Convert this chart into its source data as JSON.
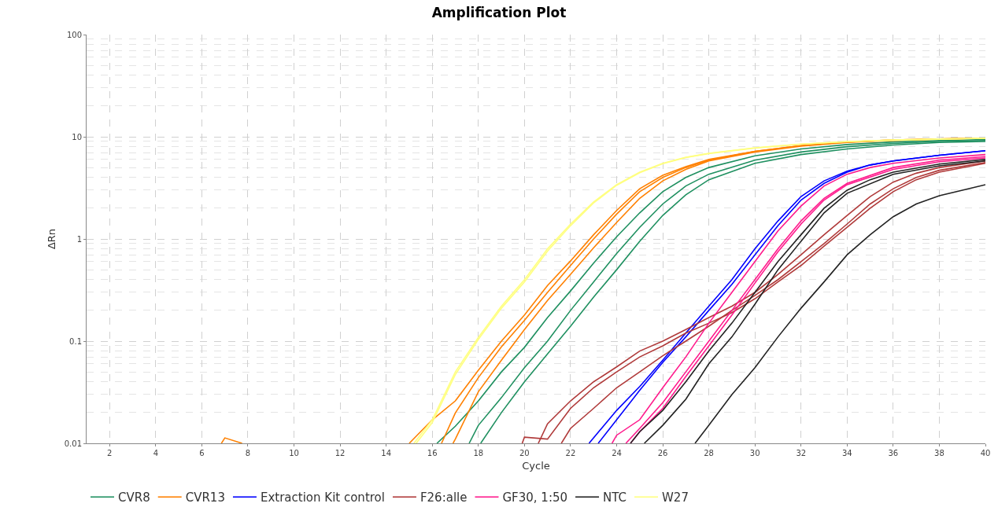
{
  "chart_data": {
    "type": "line",
    "title": "Amplification Plot",
    "xlabel": "Cycle",
    "ylabel": "ΔRn",
    "log": "y",
    "grid": true,
    "legend": "bottom",
    "marker": "none",
    "line_style": "solid",
    "xlim": [
      1,
      40
    ],
    "xticks": [
      2,
      4,
      6,
      8,
      10,
      12,
      14,
      16,
      18,
      20,
      22,
      24,
      26,
      28,
      30,
      32,
      34,
      36,
      38,
      40
    ],
    "ylim": [
      0.01,
      100
    ],
    "yticks": [
      0.01,
      0.1,
      1,
      10,
      100
    ],
    "series": [
      {
        "name": "CVR8",
        "color": "#1f9060",
        "x": [
          16.2,
          17,
          18,
          19,
          20,
          21,
          22,
          23,
          24,
          25,
          26,
          27,
          28,
          30,
          32,
          34,
          36,
          38,
          40,
          null,
          17.6,
          18,
          19,
          20,
          21,
          22,
          23,
          24,
          25,
          26,
          27,
          28,
          30,
          32,
          34,
          36,
          38,
          40,
          null,
          18.1,
          19,
          20,
          21,
          22,
          23,
          24,
          25,
          26,
          27,
          28,
          30,
          32,
          34,
          36,
          38,
          40
        ],
        "values": [
          0.01,
          0.0147,
          0.026,
          0.05,
          0.087,
          0.17,
          0.31,
          0.58,
          1.05,
          1.8,
          2.9,
          4.0,
          5.0,
          6.5,
          7.6,
          8.4,
          8.9,
          9.2,
          9.4,
          null,
          0.01,
          0.015,
          0.028,
          0.055,
          0.1,
          0.2,
          0.38,
          0.72,
          1.3,
          2.2,
          3.3,
          4.3,
          5.9,
          7.1,
          8.0,
          8.6,
          9.0,
          9.2,
          null,
          0.01,
          0.02,
          0.04,
          0.075,
          0.14,
          0.27,
          0.5,
          0.95,
          1.7,
          2.7,
          3.8,
          5.5,
          6.7,
          7.6,
          8.3,
          8.8,
          9.0
        ]
      },
      {
        "name": "CVR13",
        "color": "#ff8000",
        "x": [
          6.85,
          7,
          7.75,
          null,
          15,
          16,
          17,
          18,
          19,
          20,
          21,
          22,
          23,
          24,
          25,
          26,
          27,
          28,
          30,
          32,
          34,
          36,
          38,
          40,
          null,
          16.4,
          17,
          18,
          19,
          20,
          21,
          22,
          23,
          24,
          25,
          26,
          27,
          28,
          30,
          32,
          34,
          36,
          38,
          40,
          null,
          16.9,
          17,
          18,
          19,
          20,
          21,
          22,
          23,
          24,
          25,
          26,
          27,
          28,
          30,
          32,
          34,
          36,
          38,
          40
        ],
        "values": [
          0.01,
          0.0113,
          0.01,
          null,
          0.01,
          0.017,
          0.026,
          0.052,
          0.1,
          0.18,
          0.35,
          0.61,
          1.1,
          1.9,
          3.1,
          4.2,
          5.1,
          6.0,
          7.2,
          8.2,
          8.9,
          9.3,
          9.5,
          9.7,
          null,
          0.01,
          0.0198,
          0.044,
          0.088,
          0.16,
          0.3,
          0.55,
          1.0,
          1.75,
          2.9,
          4.0,
          5.0,
          5.9,
          7.2,
          8.2,
          8.9,
          9.3,
          9.5,
          9.7,
          null,
          0.01,
          0.011,
          0.032,
          0.065,
          0.13,
          0.25,
          0.45,
          0.82,
          1.45,
          2.5,
          3.7,
          4.8,
          5.8,
          7.1,
          8.1,
          8.8,
          9.2,
          9.5,
          9.7
        ]
      },
      {
        "name": "Extraction Kit control",
        "color": "#0000ff",
        "x": [
          22.8,
          24,
          25,
          26,
          27,
          28,
          29,
          30,
          31,
          32,
          33,
          34,
          35,
          36,
          38,
          40,
          null,
          23.2,
          24,
          25,
          26,
          27,
          28,
          29,
          30,
          31,
          32,
          33,
          34,
          35,
          36,
          38,
          40
        ],
        "values": [
          0.01,
          0.021,
          0.036,
          0.065,
          0.12,
          0.22,
          0.4,
          0.8,
          1.5,
          2.6,
          3.7,
          4.6,
          5.3,
          5.8,
          6.6,
          7.3,
          null,
          0.01,
          0.017,
          0.033,
          0.062,
          0.11,
          0.2,
          0.36,
          0.7,
          1.35,
          2.4,
          3.5,
          4.5,
          5.3,
          5.8,
          6.6,
          7.3
        ]
      },
      {
        "name": "F26:alle",
        "color": "#b03a3a",
        "x": [
          20.6,
          21,
          22,
          23,
          24,
          25,
          26,
          27,
          28,
          29,
          30,
          31,
          32,
          33,
          34,
          35,
          36,
          37,
          38,
          40,
          null,
          19.9,
          20,
          21,
          22,
          23,
          24,
          25,
          26,
          27,
          28,
          29,
          30,
          31,
          32,
          33,
          34,
          35,
          36,
          37,
          38,
          40,
          null,
          21.6,
          22,
          23,
          24,
          25,
          26,
          27,
          28,
          29,
          30,
          31,
          32,
          33,
          34,
          35,
          36,
          37,
          38,
          40
        ],
        "values": [
          0.01,
          0.0155,
          0.026,
          0.04,
          0.056,
          0.08,
          0.1,
          0.13,
          0.17,
          0.22,
          0.3,
          0.45,
          0.7,
          1.1,
          1.7,
          2.6,
          3.6,
          4.4,
          5.0,
          5.8,
          null,
          0.01,
          0.0115,
          0.011,
          0.022,
          0.035,
          0.05,
          0.07,
          0.09,
          0.12,
          0.15,
          0.19,
          0.26,
          0.38,
          0.55,
          0.85,
          1.3,
          2.0,
          2.9,
          3.8,
          4.5,
          5.5,
          null,
          0.01,
          0.014,
          0.022,
          0.035,
          0.05,
          0.072,
          0.1,
          0.14,
          0.2,
          0.28,
          0.4,
          0.6,
          0.9,
          1.4,
          2.2,
          3.1,
          4.0,
          4.7,
          5.6
        ]
      },
      {
        "name": "GF30, 1:50",
        "color": "#ff1a8c",
        "x": [
          23.8,
          24,
          25,
          26,
          27,
          28,
          29,
          30,
          31,
          32,
          33,
          34,
          35,
          36,
          38,
          40,
          null,
          24.4,
          25,
          26,
          27,
          28,
          29,
          30,
          31,
          32,
          33,
          34,
          36,
          38,
          40,
          null,
          24.6,
          25,
          26,
          27,
          28,
          29,
          30,
          31,
          32,
          33,
          34,
          36,
          38,
          40
        ],
        "values": [
          0.01,
          0.012,
          0.017,
          0.035,
          0.07,
          0.15,
          0.3,
          0.6,
          1.2,
          2.1,
          3.3,
          4.3,
          5.0,
          5.5,
          6.2,
          6.7,
          null,
          0.01,
          0.014,
          0.025,
          0.05,
          0.1,
          0.2,
          0.4,
          0.8,
          1.5,
          2.5,
          3.5,
          5.0,
          5.9,
          6.4,
          null,
          0.01,
          0.013,
          0.022,
          0.045,
          0.09,
          0.18,
          0.37,
          0.75,
          1.4,
          2.4,
          3.4,
          4.8,
          5.7,
          6.2
        ]
      },
      {
        "name": "NTC",
        "color": "#222222",
        "x": [
          24.6,
          25,
          26,
          27,
          28,
          29,
          30,
          31,
          32,
          33,
          34,
          35,
          36,
          38,
          40,
          null,
          25.2,
          26,
          27,
          28,
          29,
          30,
          31,
          32,
          33,
          34,
          36,
          38,
          40,
          null,
          27.4,
          28,
          29,
          30,
          31,
          32,
          33,
          34,
          35,
          36,
          37,
          38,
          39,
          40
        ],
        "values": [
          0.01,
          0.013,
          0.021,
          0.04,
          0.08,
          0.15,
          0.3,
          0.6,
          1.1,
          2.0,
          3.0,
          3.8,
          4.5,
          5.4,
          6.0,
          null,
          0.01,
          0.015,
          0.027,
          0.06,
          0.11,
          0.23,
          0.5,
          0.95,
          1.8,
          2.8,
          4.3,
          5.2,
          5.8,
          null,
          0.01,
          0.015,
          0.03,
          0.055,
          0.11,
          0.21,
          0.38,
          0.7,
          1.1,
          1.65,
          2.2,
          2.65,
          3.0,
          3.4
        ]
      },
      {
        "name": "W27",
        "color": "#ffff80",
        "x": [
          15.2,
          16,
          17,
          18,
          19,
          20,
          21,
          22,
          23,
          24,
          25,
          26,
          27,
          28,
          30,
          32,
          34,
          36,
          38,
          40,
          null,
          15.3,
          16,
          17,
          18,
          19,
          20,
          21,
          22,
          23,
          24,
          25,
          26,
          27,
          28,
          30,
          32,
          34,
          36,
          38,
          40
        ],
        "values": [
          0.01,
          0.017,
          0.05,
          0.109,
          0.22,
          0.4,
          0.8,
          1.4,
          2.3,
          3.4,
          4.5,
          5.5,
          6.3,
          6.9,
          7.8,
          8.5,
          9.0,
          9.3,
          9.5,
          9.7,
          null,
          0.01,
          0.016,
          0.047,
          0.104,
          0.21,
          0.38,
          0.76,
          1.35,
          2.25,
          3.35,
          4.45,
          5.45,
          6.25,
          6.85,
          7.75,
          8.45,
          8.95,
          9.25,
          9.45,
          9.65
        ]
      }
    ]
  }
}
